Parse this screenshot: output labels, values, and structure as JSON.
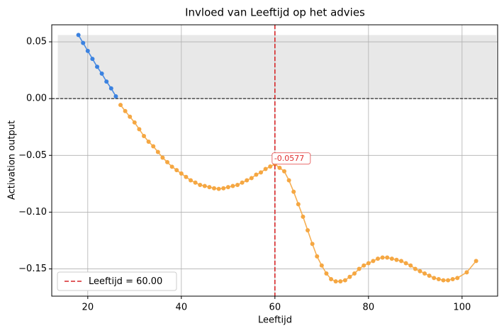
{
  "chart_data": {
    "type": "line",
    "title": "Invloed van Leeftijd op het advies",
    "xlabel": "Leeftijd",
    "ylabel": "Activation output",
    "xlim": [
      12.3,
      107.6
    ],
    "ylim": [
      -0.174,
      0.065
    ],
    "xticks": [
      20,
      40,
      60,
      80,
      100
    ],
    "yticks": [
      {
        "value": 0.05,
        "label": "0.05"
      },
      {
        "value": 0,
        "label": "0.00"
      },
      {
        "value": -0.05,
        "label": "−0.05"
      },
      {
        "value": -0.1,
        "label": "−0.10"
      },
      {
        "value": -0.15,
        "label": "−0.15"
      }
    ],
    "grid": true,
    "shade": {
      "x": [
        13.6,
        107.3
      ],
      "y": [
        0,
        0.056
      ],
      "color": "#e8e8e8"
    },
    "hline": {
      "value": 0,
      "color": "#000000"
    },
    "vline": {
      "value": 60,
      "label": "Leeftijd = 60.00",
      "color": "#d62728"
    },
    "legend": "lower left",
    "annotation": {
      "text": "-0.0577",
      "x": 60,
      "y": -0.0577,
      "color": "#e03030"
    },
    "series": [
      {
        "color": "#3b82e0",
        "x": [
          18,
          19,
          20,
          21,
          22,
          23,
          24,
          25,
          26
        ],
        "values": [
          0.056,
          0.049,
          0.042,
          0.035,
          0.028,
          0.022,
          0.015,
          0.009,
          0.002
        ]
      },
      {
        "color": "#f5a742",
        "x": [
          27,
          28,
          29,
          30,
          31,
          32,
          33,
          34,
          35,
          36,
          37,
          38,
          39,
          40,
          41,
          42,
          43,
          44,
          45,
          46,
          47,
          48,
          49,
          50,
          51,
          52,
          53,
          54,
          55,
          56,
          57,
          58,
          59,
          60,
          61,
          62,
          63,
          64,
          65,
          66,
          67,
          68,
          69,
          70,
          71,
          72,
          73,
          74,
          75,
          76,
          77,
          78,
          79,
          80,
          81,
          82,
          83,
          84,
          85,
          86,
          87,
          88,
          89,
          90,
          91,
          92,
          93,
          94,
          95,
          96,
          97,
          98,
          99,
          101,
          103
        ],
        "values": [
          -0.0056,
          -0.011,
          -0.016,
          -0.021,
          -0.027,
          -0.033,
          -0.038,
          -0.042,
          -0.047,
          -0.052,
          -0.056,
          -0.06,
          -0.063,
          -0.066,
          -0.069,
          -0.072,
          -0.074,
          -0.076,
          -0.077,
          -0.078,
          -0.079,
          -0.0795,
          -0.079,
          -0.078,
          -0.077,
          -0.076,
          -0.074,
          -0.072,
          -0.07,
          -0.067,
          -0.065,
          -0.062,
          -0.0598,
          -0.0577,
          -0.061,
          -0.064,
          -0.072,
          -0.082,
          -0.093,
          -0.104,
          -0.116,
          -0.128,
          -0.139,
          -0.147,
          -0.154,
          -0.159,
          -0.161,
          -0.161,
          -0.16,
          -0.157,
          -0.154,
          -0.15,
          -0.147,
          -0.145,
          -0.143,
          -0.141,
          -0.14,
          -0.14,
          -0.141,
          -0.142,
          -0.143,
          -0.145,
          -0.147,
          -0.15,
          -0.152,
          -0.154,
          -0.156,
          -0.158,
          -0.159,
          -0.16,
          -0.16,
          -0.159,
          -0.158,
          -0.153,
          -0.143
        ]
      }
    ]
  }
}
